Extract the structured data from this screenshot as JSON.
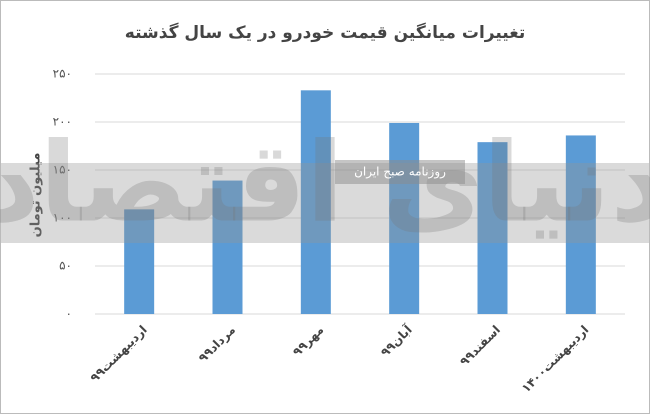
{
  "chart_data": {
    "type": "bar",
    "title": "تغییرات میانگین قیمت خودرو در یک سال گذشته",
    "y_label": "میلیون تومان",
    "watermark": "دنیای اقتصاد",
    "watermark_subtitle": "روزنامه صبح ایران",
    "categories": [
      "اردیبهشت۹۹",
      "مرداد۹۹",
      "مهر۹۹",
      "آبان۹۹",
      "اسفند۹۹",
      "اردیبهشت۱۴۰۰"
    ],
    "values": [
      109,
      139,
      233,
      199,
      179,
      186
    ],
    "color": "#5b9bd5",
    "ylim": [
      0,
      250
    ],
    "yticks": [
      {
        "value": 0,
        "label": "۰"
      },
      {
        "value": 50,
        "label": "۵۰"
      },
      {
        "value": 100,
        "label": "۱۰۰"
      },
      {
        "value": 150,
        "label": "۱۵۰"
      },
      {
        "value": 200,
        "label": "۲۰۰"
      },
      {
        "value": 250,
        "label": "۲۵۰"
      }
    ],
    "grid": true
  }
}
